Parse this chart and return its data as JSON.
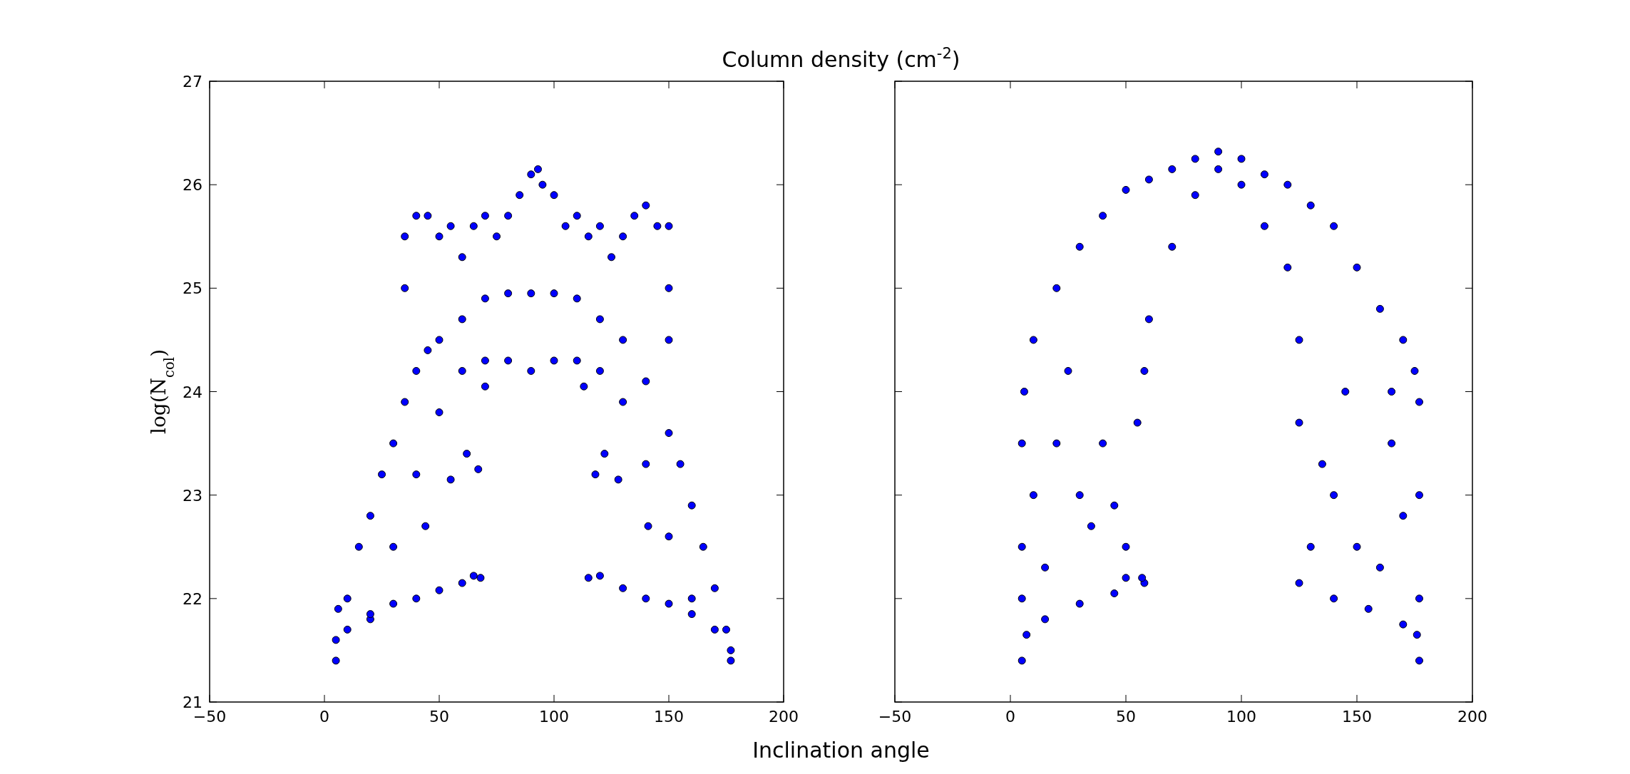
{
  "chart_data": [
    {
      "type": "scatter",
      "title": "Column density (cm$^{-2}$)",
      "xlabel": "Inclination angle",
      "ylabel": "log(N$_{col}$)",
      "xlim": [
        -50,
        200
      ],
      "ylim": [
        21,
        27
      ],
      "xticks": [
        -50,
        0,
        50,
        100,
        150,
        200
      ],
      "yticks": [
        21,
        22,
        23,
        24,
        25,
        26,
        27
      ],
      "marker": "circle",
      "grid": false,
      "series": [
        {
          "color": "#0000ff",
          "x": [
            5,
            5,
            6,
            10,
            15,
            20,
            25,
            30,
            35,
            40,
            45,
            50,
            60,
            70,
            80,
            90,
            100,
            110,
            120,
            130,
            140,
            150,
            155,
            160,
            165,
            170,
            175,
            177,
            177,
            20,
            30,
            40,
            50,
            60,
            70,
            80,
            90,
            100,
            110,
            120,
            130,
            140,
            150,
            160,
            35,
            35,
            40,
            45,
            50,
            55,
            60,
            65,
            70,
            75,
            80,
            85,
            90,
            93,
            95,
            100,
            105,
            110,
            115,
            120,
            125,
            130,
            135,
            140,
            145,
            150,
            150,
            150,
            10,
            20,
            30,
            40,
            50,
            60,
            65,
            68,
            115,
            120,
            130,
            140,
            150,
            160,
            170,
            44,
            55,
            62,
            67,
            70,
            113,
            118,
            122,
            128,
            141
          ],
          "values": [
            21.4,
            21.6,
            21.9,
            22.0,
            22.5,
            22.8,
            23.2,
            23.5,
            23.9,
            24.2,
            24.4,
            24.5,
            24.7,
            24.9,
            24.95,
            24.95,
            24.95,
            24.9,
            24.7,
            24.5,
            24.1,
            23.6,
            23.3,
            22.9,
            22.5,
            22.1,
            21.7,
            21.5,
            21.4,
            21.8,
            22.5,
            23.2,
            23.8,
            24.2,
            24.3,
            24.3,
            24.2,
            24.3,
            24.3,
            24.2,
            23.9,
            23.3,
            22.6,
            22.0,
            25.0,
            25.5,
            25.7,
            25.7,
            25.5,
            25.6,
            25.3,
            25.6,
            25.7,
            25.5,
            25.7,
            25.9,
            26.1,
            26.15,
            26.0,
            25.9,
            25.6,
            25.7,
            25.5,
            25.6,
            25.3,
            25.5,
            25.7,
            25.8,
            25.6,
            25.6,
            25.0,
            24.5,
            21.7,
            21.85,
            21.95,
            22.0,
            22.08,
            22.15,
            22.22,
            22.2,
            22.2,
            22.22,
            22.1,
            22.0,
            21.95,
            21.85,
            21.7,
            22.7,
            23.15,
            23.4,
            23.25,
            24.05,
            24.05,
            23.2,
            23.4,
            23.15,
            22.7
          ]
        }
      ]
    },
    {
      "type": "scatter",
      "xlim": [
        -50,
        200
      ],
      "ylim": [
        21,
        27
      ],
      "xticks": [
        -50,
        0,
        50,
        100,
        150,
        200
      ],
      "yticks": [
        21,
        22,
        23,
        24,
        25,
        26,
        27
      ],
      "tick_labels": "x",
      "marker": "circle",
      "grid": false,
      "series": [
        {
          "color": "#0000ff",
          "x": [
            5,
            5,
            5,
            5,
            6,
            10,
            20,
            30,
            40,
            50,
            60,
            70,
            80,
            90,
            100,
            110,
            120,
            130,
            140,
            150,
            160,
            170,
            175,
            177,
            177,
            177,
            177,
            58,
            60,
            70,
            80,
            90,
            100,
            110,
            120,
            125,
            125,
            20,
            30,
            40,
            50,
            45,
            35,
            55,
            140,
            150,
            135,
            145,
            130,
            160,
            165,
            170,
            25,
            15,
            7,
            15,
            30,
            45,
            58,
            125,
            140,
            155,
            170,
            176,
            50,
            57,
            10,
            165
          ],
          "values": [
            21.4,
            22.0,
            22.5,
            23.5,
            24.0,
            24.5,
            25.0,
            25.4,
            25.7,
            25.95,
            26.05,
            26.15,
            26.25,
            26.32,
            26.25,
            26.1,
            26.0,
            25.8,
            25.6,
            25.2,
            24.8,
            24.5,
            24.2,
            23.9,
            23.0,
            22.0,
            21.4,
            24.2,
            24.7,
            25.4,
            25.9,
            26.15,
            26.0,
            25.6,
            25.2,
            24.5,
            23.7,
            23.5,
            23.0,
            23.5,
            22.5,
            22.9,
            22.7,
            23.7,
            23.0,
            22.5,
            23.3,
            24.0,
            22.5,
            22.3,
            23.5,
            22.8,
            24.2,
            22.3,
            21.65,
            21.8,
            21.95,
            22.05,
            22.15,
            22.15,
            22.0,
            21.9,
            21.75,
            21.65,
            22.2,
            22.2,
            23.0,
            24.0
          ]
        }
      ]
    }
  ]
}
